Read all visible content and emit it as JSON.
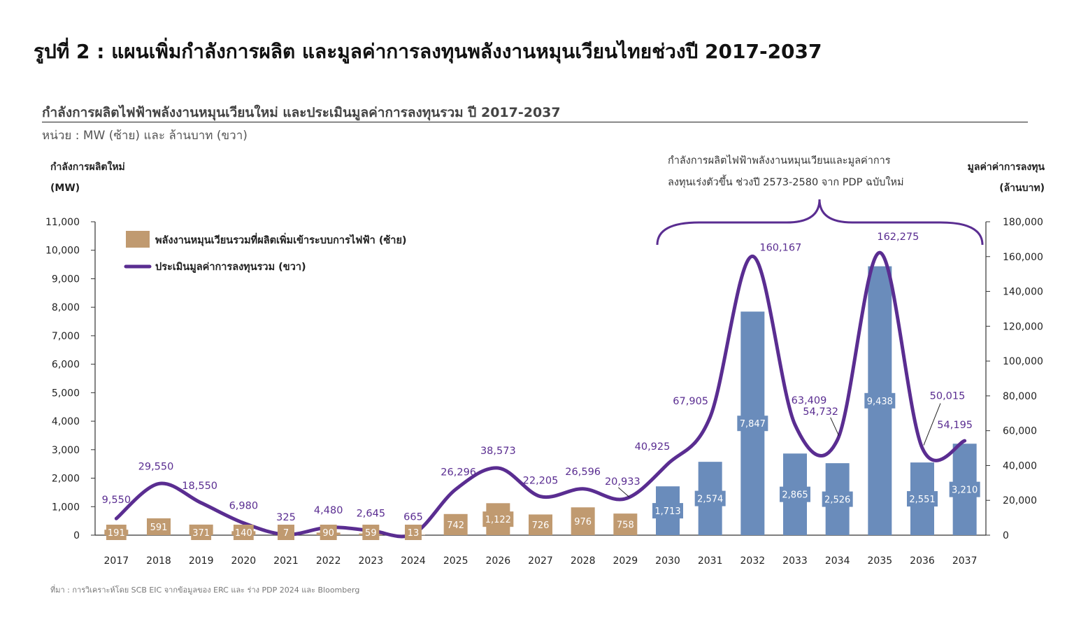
{
  "page_title": "รูปที่ 2 : แผนเพิ่มกำลังการผลิต และมูลค่าการลงทุนพลังงานหมุนเวียนไทยช่วงปี 2017-2037",
  "chart_title": "กำลังการผลิตไฟฟ้าพลังงานหมุนเวียนใหม่ และประเมินมูลค่าการลงทุนรวม ปี 2017-2037",
  "unit_note": "หน่วย : MW (ซ้าย) และ ล้านบาท (ขวา)",
  "source": "ที่มา : การวิเคราะห์โดย SCB EIC จากข้อมูลของ ERC และ ร่าง PDP 2024 และ Bloomberg",
  "colors": {
    "bar_existing": "#c09a70",
    "bar_future": "#6a8cbb",
    "line": "#5a2d91"
  },
  "chart_data": {
    "type": "bar+line",
    "categories": [
      "2017",
      "2018",
      "2019",
      "2020",
      "2021",
      "2022",
      "2023",
      "2024",
      "2025",
      "2026",
      "2027",
      "2028",
      "2029",
      "2030",
      "2031",
      "2032",
      "2033",
      "2034",
      "2035",
      "2036",
      "2037"
    ],
    "bars": {
      "name": "พลังงานหมุนเวียนรวมที่ผลิตเพิ่มเข้าระบบการไฟฟ้า (ซ้าย)",
      "values": [
        191,
        591,
        371,
        140,
        7,
        90,
        59,
        13,
        742,
        1122,
        726,
        976,
        758,
        1713,
        2574,
        7847,
        2865,
        2526,
        9438,
        2551,
        3210
      ],
      "labels": [
        "191",
        "591",
        "371",
        "140",
        "7",
        "90",
        "59",
        "13",
        "742",
        "1,122",
        "726",
        "976",
        "758",
        "1,713",
        "2,574",
        "7,847",
        "2,865",
        "2,526",
        "9,438",
        "2,551",
        "3,210"
      ]
    },
    "line": {
      "name": "ประเมินมูลค่าการลงทุนรวม (ขวา)",
      "values": [
        9550,
        29550,
        18550,
        6980,
        325,
        4480,
        2645,
        665,
        26296,
        38573,
        22205,
        26596,
        20933,
        40925,
        67905,
        160167,
        63409,
        54732,
        162275,
        50015,
        54195
      ],
      "labels": [
        "9,550",
        "29,550",
        "18,550",
        "6,980",
        "325",
        "4,480",
        "2,645",
        "665",
        "26,296",
        "38,573",
        "22,205",
        "26,596",
        "20,933",
        "40,925",
        "67,905",
        "160,167",
        "63,409",
        "54,732",
        "162,275",
        "50,015",
        "54,195"
      ]
    },
    "left_axis": {
      "title_line1": "กำลังการผลิตใหม่",
      "title_line2": "(MW)",
      "range": [
        0,
        11000
      ],
      "ticks": [
        "0",
        "1,000",
        "2,000",
        "3,000",
        "4,000",
        "5,000",
        "6,000",
        "7,000",
        "8,000",
        "9,000",
        "10,000",
        "11,000"
      ]
    },
    "right_axis": {
      "title_line1": "มูลค่าค่าการลงทุน",
      "title_line2": "(ล้านบาท)",
      "range": [
        0,
        180000
      ],
      "ticks": [
        "0",
        "20,000",
        "40,000",
        "60,000",
        "80,000",
        "100,000",
        "120,000",
        "140,000",
        "160,000",
        "180,000"
      ]
    },
    "annotation": {
      "line1": "กำลังการผลิตไฟฟ้าพลังงานหมุนเวียนและมูลค่าการ",
      "line2": "ลงทุนเร่งตัวขึ้น ช่วงปี 2573-2580 จาก PDP ฉบับใหม่"
    },
    "legend_position": "top-left",
    "grid": false
  }
}
